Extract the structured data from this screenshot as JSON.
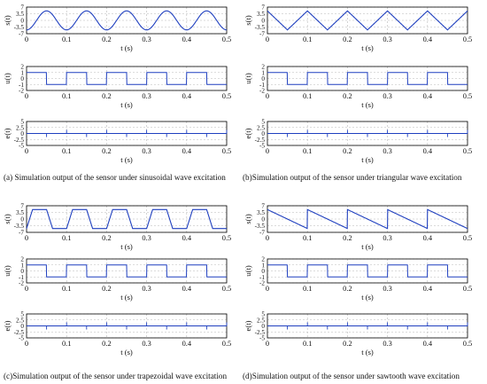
{
  "colors": {
    "line": "#1f3fbf",
    "axis": "#000000",
    "grid": "#b8b8b8",
    "text": "#111111"
  },
  "captions": [
    "(a)  Simulation output of the sensor under sinusoidal wave excitation",
    "(b)Simulation output of the sensor under triangular wave excitation",
    "(c)Simulation output of the sensor under trapezoidal wave excitation",
    "(d)Simulation output of the sensor under sawtooth wave excitation"
  ],
  "chart_data": [
    {
      "panel": "a",
      "type": "line",
      "ylabel": "s(t)",
      "xlabel": "t (s)",
      "xlim": [
        0,
        0.5
      ],
      "ylim": [
        -7,
        7
      ],
      "yticks": [
        "7",
        "3.5",
        "0",
        "-3.5",
        "-7"
      ],
      "xticks": [
        "0",
        "0.1",
        "0.2",
        "0.3",
        "0.4",
        "0.5"
      ],
      "grid": true,
      "signal": "sinusoidal",
      "amplitude": 5,
      "period": 0.1
    },
    {
      "panel": "a",
      "type": "line",
      "ylabel": "u(t)",
      "xlabel": "t (s)",
      "xlim": [
        0,
        0.5
      ],
      "ylim": [
        -2,
        2
      ],
      "yticks": [
        "2",
        "1",
        "0",
        "-1",
        "-2"
      ],
      "xticks": [
        "0",
        "0.1",
        "0.2",
        "0.3",
        "0.4",
        "0.5"
      ],
      "grid": true,
      "signal": "square",
      "amplitude": 1,
      "period": 0.1
    },
    {
      "panel": "a",
      "type": "line",
      "ylabel": "e(t)",
      "xlabel": "t (s)",
      "xlim": [
        0,
        0.5
      ],
      "ylim": [
        -5,
        5
      ],
      "yticks": [
        "5",
        "2.5",
        "0",
        "-2.5",
        "-5"
      ],
      "xticks": [
        "0",
        "0.1",
        "0.2",
        "0.3",
        "0.4",
        "0.5"
      ],
      "grid": true,
      "signal": "spikes",
      "spike_height": 1.5,
      "period": 0.1
    },
    {
      "panel": "b",
      "type": "line",
      "ylabel": "s(t)",
      "xlabel": "t (s)",
      "xlim": [
        0,
        0.5
      ],
      "ylim": [
        -7,
        7
      ],
      "yticks": [
        "7",
        "3.5",
        "0",
        "-3.5",
        "-7"
      ],
      "xticks": [
        "0",
        "0.1",
        "0.2",
        "0.3",
        "0.4",
        "0.5"
      ],
      "grid": true,
      "signal": "triangular",
      "amplitude": 5,
      "period": 0.1
    },
    {
      "panel": "b",
      "type": "line",
      "ylabel": "u(t)",
      "xlabel": "t (s)",
      "xlim": [
        0,
        0.5
      ],
      "ylim": [
        -2,
        2
      ],
      "yticks": [
        "2",
        "1",
        "0",
        "-1",
        "-2"
      ],
      "xticks": [
        "0",
        "0.1",
        "0.2",
        "0.3",
        "0.4",
        "0.5"
      ],
      "grid": true,
      "signal": "square",
      "amplitude": 1,
      "period": 0.1
    },
    {
      "panel": "b",
      "type": "line",
      "ylabel": "e(t)",
      "xlabel": "t (s)",
      "xlim": [
        0,
        0.5
      ],
      "ylim": [
        -5,
        5
      ],
      "yticks": [
        "5",
        "2.5",
        "0",
        "-2.5",
        "-5"
      ],
      "xticks": [
        "0",
        "0.1",
        "0.2",
        "0.3",
        "0.4",
        "0.5"
      ],
      "grid": true,
      "signal": "spikes",
      "spike_height": 1.5,
      "period": 0.1
    },
    {
      "panel": "c",
      "type": "line",
      "ylabel": "s(t)",
      "xlabel": "t (s)",
      "xlim": [
        0,
        0.5
      ],
      "ylim": [
        -7,
        7
      ],
      "yticks": [
        "7",
        "3.5",
        "0",
        "-3.5",
        "-7"
      ],
      "xticks": [
        "0",
        "0.1",
        "0.2",
        "0.3",
        "0.4",
        "0.5"
      ],
      "grid": true,
      "signal": "trapezoidal",
      "amplitude": 5,
      "period": 0.1
    },
    {
      "panel": "c",
      "type": "line",
      "ylabel": "u(t)",
      "xlabel": "t (s)",
      "xlim": [
        0,
        0.5
      ],
      "ylim": [
        -2,
        2
      ],
      "yticks": [
        "2",
        "1",
        "0",
        "-1",
        "-2"
      ],
      "xticks": [
        "0",
        "0.1",
        "0.2",
        "0.3",
        "0.4",
        "0.5"
      ],
      "grid": true,
      "signal": "square",
      "amplitude": 1,
      "period": 0.1
    },
    {
      "panel": "c",
      "type": "line",
      "ylabel": "e(t)",
      "xlabel": "t (s)",
      "xlim": [
        0,
        0.5
      ],
      "ylim": [
        -5,
        5
      ],
      "yticks": [
        "5",
        "2.5",
        "0",
        "-2.5",
        "-5"
      ],
      "xticks": [
        "0",
        "0.1",
        "0.2",
        "0.3",
        "0.4",
        "0.5"
      ],
      "grid": true,
      "signal": "spikes",
      "spike_height": 1.5,
      "period": 0.1
    },
    {
      "panel": "d",
      "type": "line",
      "ylabel": "s(t)",
      "xlabel": "t (s)",
      "xlim": [
        0,
        0.5
      ],
      "ylim": [
        -7,
        7
      ],
      "yticks": [
        "7",
        "3.5",
        "0",
        "-3.5",
        "-7"
      ],
      "xticks": [
        "0",
        "0.1",
        "0.2",
        "0.3",
        "0.4",
        "0.5"
      ],
      "grid": true,
      "signal": "sawtooth",
      "amplitude": 5,
      "period": 0.1
    },
    {
      "panel": "d",
      "type": "line",
      "ylabel": "u(t)",
      "xlabel": "t (s)",
      "xlim": [
        0,
        0.5
      ],
      "ylim": [
        -2,
        2
      ],
      "yticks": [
        "2",
        "1",
        "0",
        "-1",
        "-2"
      ],
      "xticks": [
        "0",
        "0.1",
        "0.2",
        "0.3",
        "0.4",
        "0.5"
      ],
      "grid": true,
      "signal": "square",
      "amplitude": 1,
      "period": 0.1
    },
    {
      "panel": "d",
      "type": "line",
      "ylabel": "e(t)",
      "xlabel": "t (s)",
      "xlim": [
        0,
        0.5
      ],
      "ylim": [
        -5,
        5
      ],
      "yticks": [
        "5",
        "2.5",
        "0",
        "-2.5",
        "-5"
      ],
      "xticks": [
        "0",
        "0.1",
        "0.2",
        "0.3",
        "0.4",
        "0.5"
      ],
      "grid": true,
      "signal": "spikes",
      "spike_height": 1.5,
      "period": 0.1
    }
  ]
}
